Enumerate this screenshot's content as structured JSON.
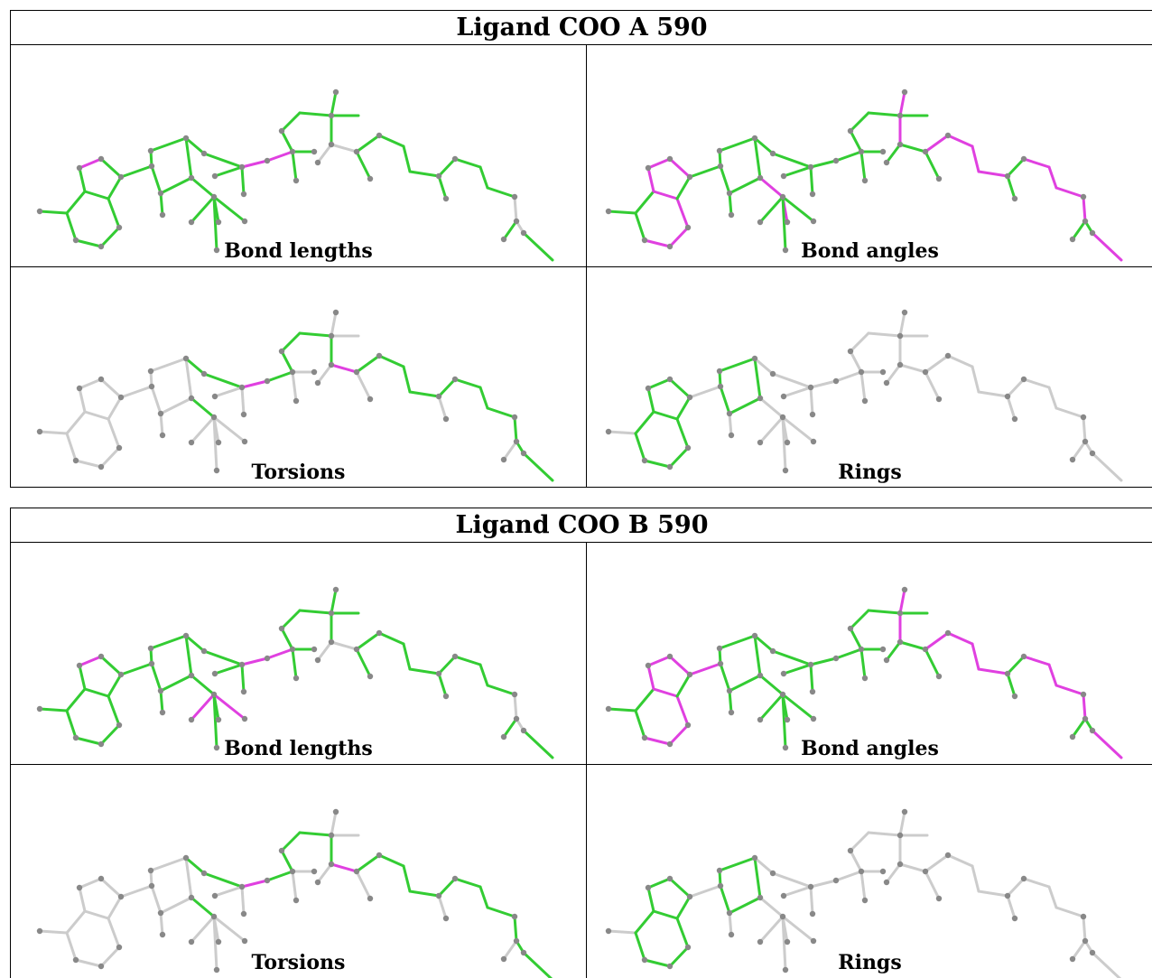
{
  "ligands": [
    {
      "title": "Ligand COO A 590",
      "panels": [
        {
          "caption": "Bond lengths",
          "highlight": "lengthsA"
        },
        {
          "caption": "Bond angles",
          "highlight": "anglesA"
        },
        {
          "caption": "Torsions",
          "highlight": "torsionsA"
        },
        {
          "caption": "Rings",
          "highlight": "rings"
        }
      ]
    },
    {
      "title": "Ligand COO B 590",
      "panels": [
        {
          "caption": "Bond lengths",
          "highlight": "lengthsB"
        },
        {
          "caption": "Bond angles",
          "highlight": "anglesB"
        },
        {
          "caption": "Torsions",
          "highlight": "torsionsB"
        },
        {
          "caption": "Rings",
          "highlight": "rings"
        }
      ]
    }
  ],
  "colors": {
    "ok": "#33cc33",
    "outlier": "#e040e0",
    "not_assessed": "#cccccc",
    "atom": "#888888",
    "border": "#000000"
  }
}
